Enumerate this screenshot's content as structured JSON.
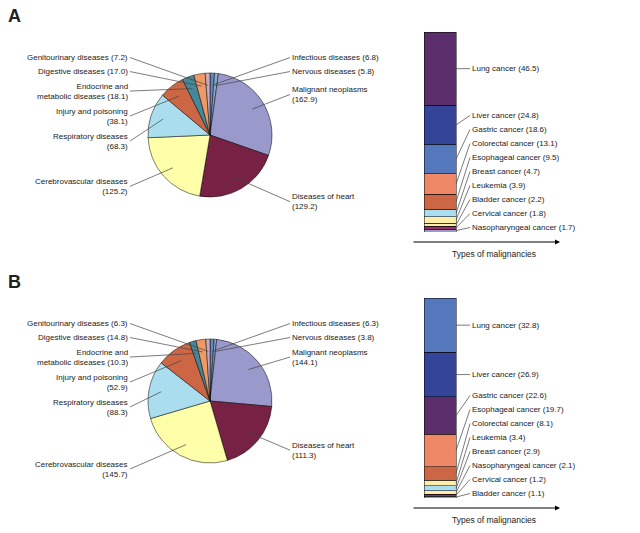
{
  "chart_data": [
    {
      "type": "pie",
      "title": "A",
      "categories": [
        "Infectious diseases (6.8)",
        "Nervous diseases (5.8)",
        "Malignant neoplasms\n(162.9)",
        "Diseases of heart\n(129.2)",
        "Cerebrovascular diseases\n(125.2)",
        "Respiratory diseases\n(68.3)",
        "Injury and poisoning\n(38.1)",
        "Endocrine and\nmetabolic diseases (18.1)",
        "Digestive diseases (17.0)",
        "Genitourinary diseases (7.2)"
      ],
      "values": [
        6.8,
        5.8,
        162.9,
        129.2,
        125.2,
        68.3,
        38.1,
        18.1,
        17.0,
        7.2
      ],
      "colors": [
        "#6688bb",
        "#88aacc",
        "#9999cc",
        "#772244",
        "#ffffaa",
        "#aadeee",
        "#cc6644",
        "#448899",
        "#ee9966",
        "#ccaabb"
      ]
    },
    {
      "type": "bar",
      "stacked": true,
      "tick_labels": false,
      "xlabel": "Types of malignancies",
      "categories": [
        null
      ],
      "series": [
        {
          "name": "Nasopharyngeal cancer (1.7)",
          "color": "#9999cc",
          "values": [
            1.7
          ]
        },
        {
          "name": "Cervical cancer (1.8)",
          "color": "#993366",
          "values": [
            1.8
          ]
        },
        {
          "name": "Bladder cancer (2.2)",
          "color": "#ffeeaa",
          "values": [
            2.2
          ]
        },
        {
          "name": "Leukemia (3.9)",
          "color": "#ffeeaa",
          "values": [
            3.9
          ]
        },
        {
          "name": "Breast cancer (4.7)",
          "color": "#aaddee",
          "values": [
            4.7
          ]
        },
        {
          "name": "Esophageal cancer (9.5)",
          "color": "#cc6644",
          "values": [
            9.5
          ]
        },
        {
          "name": "Colorectal cancer (13.1)",
          "color": "#ee8866",
          "values": [
            13.1
          ]
        },
        {
          "name": "Gastric cancer (18.6)",
          "color": "#5577bb",
          "values": [
            18.6
          ]
        },
        {
          "name": "Liver cancer (24.8)",
          "color": "#334499",
          "values": [
            24.8
          ]
        },
        {
          "name": "Lung cancer (46.5)",
          "color": "#5c2d6b",
          "values": [
            46.5
          ]
        }
      ]
    },
    {
      "type": "pie",
      "title": "B",
      "categories": [
        "Infectious diseases (6.3)",
        "Nervous diseases (3.8)",
        "Malignant neoplasms\n(144.1)",
        "Diseases of heart\n(111.3)",
        "Cerebrovascular diseases\n(145.7)",
        "Respiratory diseases\n(88.3)",
        "Injury and poisoning\n(52.9)",
        "Endocrine and\nmetabolic diseases (10.3)",
        "Digestive diseases (14.8)",
        "Genitourinary diseases (6.3)"
      ],
      "values": [
        6.3,
        3.8,
        144.1,
        111.3,
        145.7,
        88.3,
        52.9,
        10.3,
        14.8,
        6.3
      ],
      "colors": [
        "#6688bb",
        "#88aacc",
        "#9999cc",
        "#772244",
        "#ffffaa",
        "#aadeee",
        "#cc6644",
        "#448899",
        "#ee9966",
        "#ccaabb"
      ]
    },
    {
      "type": "bar",
      "stacked": true,
      "tick_labels": false,
      "xlabel": "Types of malignancies",
      "categories": [
        null
      ],
      "series": [
        {
          "name": "Bladder cancer (1.1)",
          "color": "#9999cc",
          "values": [
            1.1
          ]
        },
        {
          "name": "Cervical cancer (1.2)",
          "color": "#993366",
          "values": [
            1.2
          ]
        },
        {
          "name": "Nasopharyngeal cancer (2.1)",
          "color": "#ffeeaa",
          "values": [
            2.1
          ]
        },
        {
          "name": "Breast cancer (2.9)",
          "color": "#aaddee",
          "values": [
            2.9
          ]
        },
        {
          "name": "Leukemia (3.4)",
          "color": "#ffeeaa",
          "values": [
            3.4
          ]
        },
        {
          "name": "Colorectal cancer (8.1)",
          "color": "#cc6644",
          "values": [
            8.1
          ]
        },
        {
          "name": "Esophageal cancer (19.7)",
          "color": "#ee8866",
          "values": [
            19.7
          ]
        },
        {
          "name": "Gastric cancer (22.6)",
          "color": "#5c2d6b",
          "values": [
            22.6
          ]
        },
        {
          "name": "Liver cancer (26.9)",
          "color": "#334499",
          "values": [
            26.9
          ]
        },
        {
          "name": "Lung cancer (32.8)",
          "color": "#5577bb",
          "values": [
            32.8
          ]
        }
      ]
    }
  ]
}
